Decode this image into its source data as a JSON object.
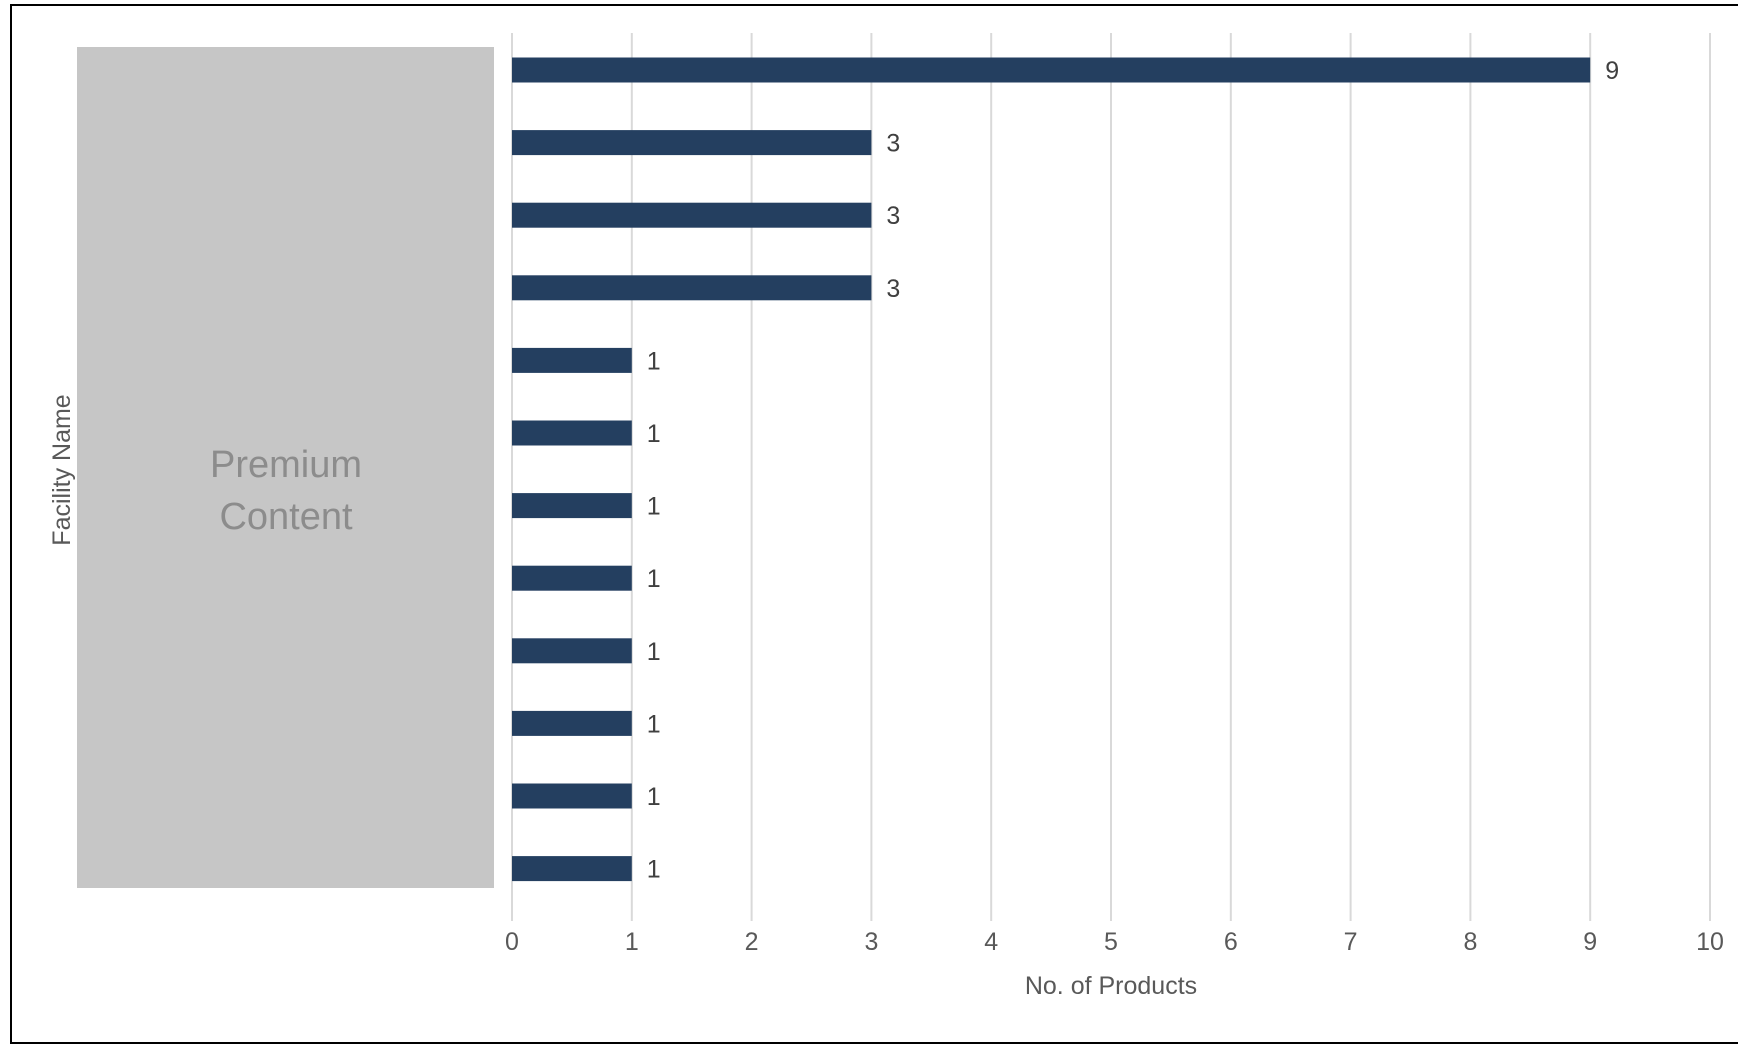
{
  "chart_data": {
    "type": "bar",
    "orientation": "horizontal",
    "xlabel": "No. of Products",
    "ylabel": "Facility Name",
    "xlim": [
      0,
      10
    ],
    "x_ticks": [
      "0",
      "1",
      "2",
      "3",
      "4",
      "5",
      "6",
      "7",
      "8",
      "9",
      "10"
    ],
    "values": [
      9,
      3,
      3,
      3,
      1,
      1,
      1,
      1,
      1,
      1,
      1,
      1
    ],
    "data_labels": [
      "9",
      "3",
      "3",
      "3",
      "1",
      "1",
      "1",
      "1",
      "1",
      "1",
      "1",
      "1"
    ],
    "category_placeholder": [
      "Premium",
      "Content"
    ],
    "grid": "vertical",
    "bar_color": "#243f60",
    "grid_color": "#d9d9d9",
    "placeholder_color": "#c6c6c6"
  }
}
